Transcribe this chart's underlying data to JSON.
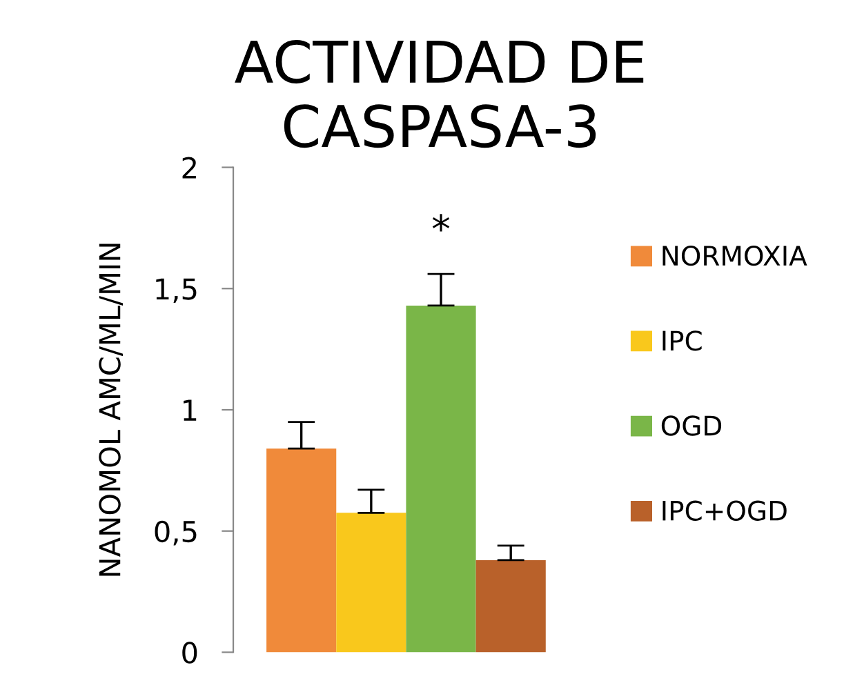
{
  "chart_data": {
    "type": "bar",
    "title": "ACTIVIDAD DE\nCASPASA-3",
    "ylabel": "NANOMOL AMC/ML/MIN",
    "categories": [
      null
    ],
    "series": [
      {
        "name": "NORMOXIA",
        "color": "#f08a3a",
        "values": [
          0.84
        ],
        "errors": [
          [
            0.84,
            0.95
          ]
        ]
      },
      {
        "name": "IPC",
        "color": "#f9c81c",
        "values": [
          0.575
        ],
        "errors": [
          [
            0.575,
            0.67
          ]
        ]
      },
      {
        "name": "OGD",
        "color": "#7ab648",
        "values": [
          1.43
        ],
        "errors": [
          [
            1.43,
            1.56
          ]
        ]
      },
      {
        "name": "IPC+OGD",
        "color": "#b9612a",
        "values": [
          0.38
        ],
        "errors": [
          [
            0.38,
            0.44
          ]
        ]
      }
    ],
    "annotations": [
      "*"
    ],
    "ylim": [
      0,
      2
    ],
    "yticks": [
      0,
      {
        "value": 0.5,
        "label": "0,5"
      },
      1,
      {
        "value": 1.5,
        "label": "1,5"
      },
      2
    ],
    "grid": false,
    "legend": "right"
  }
}
